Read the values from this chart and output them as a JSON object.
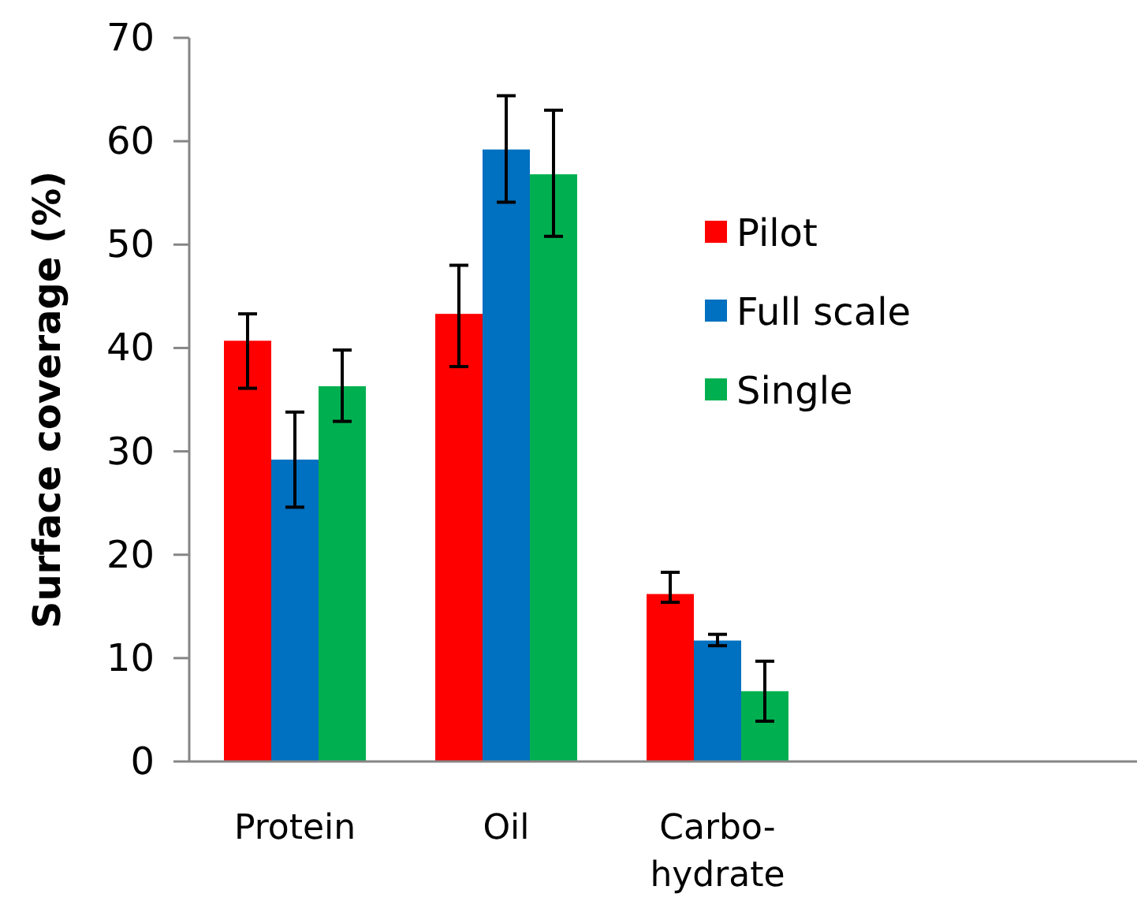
{
  "chart_data": {
    "type": "bar",
    "ylabel": "Surface coverage (%)",
    "categories": [
      "Protein",
      "Oil",
      "Carbo-hydrate"
    ],
    "series": [
      {
        "name": "Pilot",
        "color": "#ff0000",
        "values": [
          40.7,
          43.3,
          16.2
        ],
        "errors": [
          [
            36.1,
            43.3
          ],
          [
            38.2,
            48.0
          ],
          [
            15.4,
            18.3
          ]
        ]
      },
      {
        "name": "Full scale",
        "color": "#0070c0",
        "values": [
          29.2,
          59.2,
          11.7
        ],
        "errors": [
          [
            24.6,
            33.8
          ],
          [
            54.1,
            64.4
          ],
          [
            11.2,
            12.3
          ]
        ]
      },
      {
        "name": "Single",
        "color": "#00b050",
        "values": [
          36.3,
          56.8,
          6.8
        ],
        "errors": [
          [
            32.9,
            39.8
          ],
          [
            50.8,
            63.0
          ],
          [
            3.9,
            9.7
          ]
        ]
      }
    ],
    "ylim": [
      0,
      70
    ],
    "yticks": [
      0,
      10,
      20,
      30,
      40,
      50,
      60,
      70
    ],
    "grid": false,
    "legend": "right"
  }
}
